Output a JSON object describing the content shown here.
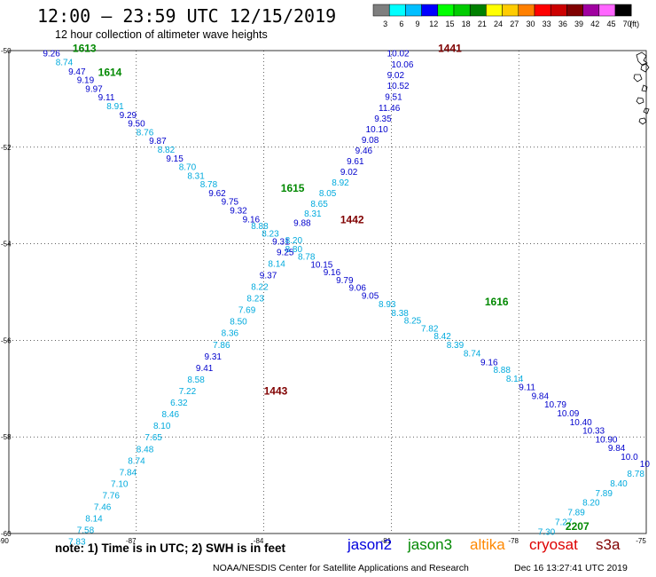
{
  "header": {
    "title": "12:00 – 23:59 UTC 12/15/2019",
    "subtitle": "12 hour collection of altimeter wave heights"
  },
  "colorbar": {
    "unit": "(ft)",
    "bins": [
      {
        "label": "3",
        "color": "#7f7f7f"
      },
      {
        "label": "6",
        "color": "#00ffff"
      },
      {
        "label": "9",
        "color": "#00bfff"
      },
      {
        "label": "12",
        "color": "#0000ff"
      },
      {
        "label": "15",
        "color": "#00ff00"
      },
      {
        "label": "18",
        "color": "#00cc00"
      },
      {
        "label": "21",
        "color": "#008000"
      },
      {
        "label": "24",
        "color": "#ffff00"
      },
      {
        "label": "27",
        "color": "#ffcc00"
      },
      {
        "label": "30",
        "color": "#ff8000"
      },
      {
        "label": "33",
        "color": "#ff0000"
      },
      {
        "label": "36",
        "color": "#cc0000"
      },
      {
        "label": "39",
        "color": "#800000"
      },
      {
        "label": "42",
        "color": "#a000a0"
      },
      {
        "label": "45",
        "color": "#ff66ff"
      },
      {
        "label": "70",
        "color": "#000000"
      }
    ]
  },
  "map": {
    "lon_ticks": [
      "-90",
      "-87",
      "-84",
      "-81",
      "-78",
      "-75"
    ],
    "lat_ticks": [
      "-50",
      "-52",
      "-54",
      "-56",
      "-58",
      "-60"
    ],
    "lon_range": [
      -90,
      -75
    ],
    "lat_range": [
      -60,
      -50
    ]
  },
  "chart_data": {
    "type": "scatter",
    "passes": [
      {
        "id": "pass-a",
        "color": "#00aadd",
        "labels": [
          {
            "t": "9.26",
            "lon": -89.2,
            "lat": -50.05,
            "color": "#0000cc"
          },
          {
            "t": "8.74",
            "lon": -88.9,
            "lat": -50.23,
            "color": "#00aadd"
          },
          {
            "t": "9.47",
            "lon": -88.6,
            "lat": -50.42,
            "color": "#0000cc"
          },
          {
            "t": "9.19",
            "lon": -88.4,
            "lat": -50.6,
            "color": "#0000cc"
          },
          {
            "t": "9.97",
            "lon": -88.2,
            "lat": -50.78,
            "color": "#0000cc"
          },
          {
            "t": "9.11",
            "lon": -87.9,
            "lat": -50.96,
            "color": "#0000cc"
          },
          {
            "t": "8.91",
            "lon": -87.7,
            "lat": -51.14,
            "color": "#00aadd"
          },
          {
            "t": "9.29",
            "lon": -87.4,
            "lat": -51.32,
            "color": "#0000cc"
          },
          {
            "t": "9.50",
            "lon": -87.2,
            "lat": -51.5,
            "color": "#0000cc"
          },
          {
            "t": "8.76",
            "lon": -87.0,
            "lat": -51.68,
            "color": "#00aadd"
          },
          {
            "t": "9.87",
            "lon": -86.7,
            "lat": -51.86,
            "color": "#0000cc"
          },
          {
            "t": "8.82",
            "lon": -86.5,
            "lat": -52.04,
            "color": "#00aadd"
          },
          {
            "t": "9.15",
            "lon": -86.3,
            "lat": -52.22,
            "color": "#0000cc"
          },
          {
            "t": "8.70",
            "lon": -86.0,
            "lat": -52.4,
            "color": "#00aadd"
          },
          {
            "t": "8.31",
            "lon": -85.8,
            "lat": -52.58,
            "color": "#00aadd"
          },
          {
            "t": "8.78",
            "lon": -85.5,
            "lat": -52.76,
            "color": "#00aadd"
          },
          {
            "t": "9.62",
            "lon": -85.3,
            "lat": -52.94,
            "color": "#0000cc"
          },
          {
            "t": "9.75",
            "lon": -85.0,
            "lat": -53.12,
            "color": "#0000cc"
          },
          {
            "t": "9.32",
            "lon": -84.8,
            "lat": -53.3,
            "color": "#0000cc"
          },
          {
            "t": "9.16",
            "lon": -84.5,
            "lat": -53.48,
            "color": "#0000cc"
          },
          {
            "t": "8.88",
            "lon": -84.3,
            "lat": -53.62,
            "color": "#00aadd"
          },
          {
            "t": "8.23",
            "lon": -84.05,
            "lat": -53.78,
            "color": "#00aadd"
          },
          {
            "t": "9.31",
            "lon": -83.8,
            "lat": -53.94,
            "color": "#0000cc"
          },
          {
            "t": "8.80",
            "lon": -83.5,
            "lat": -54.1,
            "color": "#00aadd"
          },
          {
            "t": "8.78",
            "lon": -83.2,
            "lat": -54.26,
            "color": "#00aadd"
          },
          {
            "t": "10.15",
            "lon": -82.9,
            "lat": -54.42,
            "color": "#0000cc"
          },
          {
            "t": "9.16",
            "lon": -82.6,
            "lat": -54.58,
            "color": "#0000cc"
          },
          {
            "t": "9.79",
            "lon": -82.3,
            "lat": -54.74,
            "color": "#0000cc"
          },
          {
            "t": "9.06",
            "lon": -82.0,
            "lat": -54.9,
            "color": "#0000cc"
          },
          {
            "t": "9.05",
            "lon": -81.7,
            "lat": -55.06,
            "color": "#0000cc"
          },
          {
            "t": "8.93",
            "lon": -81.3,
            "lat": -55.24,
            "color": "#00aadd"
          },
          {
            "t": "8.38",
            "lon": -81.0,
            "lat": -55.42,
            "color": "#00aadd"
          },
          {
            "t": "8.25",
            "lon": -80.7,
            "lat": -55.58,
            "color": "#00aadd"
          },
          {
            "t": "7.82",
            "lon": -80.3,
            "lat": -55.74,
            "color": "#00aadd"
          },
          {
            "t": "8.42",
            "lon": -80.0,
            "lat": -55.9,
            "color": "#00aadd"
          },
          {
            "t": "8.39",
            "lon": -79.7,
            "lat": -56.08,
            "color": "#00aadd"
          },
          {
            "t": "8.74",
            "lon": -79.3,
            "lat": -56.26,
            "color": "#00aadd"
          },
          {
            "t": "9.16",
            "lon": -78.9,
            "lat": -56.44,
            "color": "#0000cc"
          },
          {
            "t": "8.88",
            "lon": -78.6,
            "lat": -56.6,
            "color": "#00aadd"
          },
          {
            "t": "8.14",
            "lon": -78.3,
            "lat": -56.78,
            "color": "#00aadd"
          },
          {
            "t": "9.11",
            "lon": -78.0,
            "lat": -56.96,
            "color": "#0000cc"
          },
          {
            "t": "9.84",
            "lon": -77.7,
            "lat": -57.14,
            "color": "#0000cc"
          },
          {
            "t": "10.79",
            "lon": -77.4,
            "lat": -57.32,
            "color": "#0000cc"
          },
          {
            "t": "10.09",
            "lon": -77.1,
            "lat": -57.5,
            "color": "#0000cc"
          },
          {
            "t": "10.40",
            "lon": -76.8,
            "lat": -57.68,
            "color": "#0000cc"
          },
          {
            "t": "10.33",
            "lon": -76.5,
            "lat": -57.86,
            "color": "#0000cc"
          },
          {
            "t": "10.90",
            "lon": -76.2,
            "lat": -58.04,
            "color": "#0000cc"
          },
          {
            "t": "9.84",
            "lon": -75.9,
            "lat": -58.22,
            "color": "#0000cc"
          },
          {
            "t": "10.0",
            "lon": -75.6,
            "lat": -58.4,
            "color": "#0000cc"
          }
        ]
      },
      {
        "id": "pass-b",
        "color": "#0000cc",
        "labels": [
          {
            "t": "10.02",
            "lon": -81.1,
            "lat": -50.05,
            "color": "#0000cc"
          },
          {
            "t": "10.06",
            "lon": -81.0,
            "lat": -50.28,
            "color": "#0000cc"
          },
          {
            "t": "9.02",
            "lon": -81.1,
            "lat": -50.5,
            "color": "#0000cc"
          },
          {
            "t": "10.52",
            "lon": -81.1,
            "lat": -50.72,
            "color": "#0000cc"
          },
          {
            "t": "9.51",
            "lon": -81.15,
            "lat": -50.95,
            "color": "#0000cc"
          },
          {
            "t": "11.46",
            "lon": -81.3,
            "lat": -51.18,
            "color": "#0000cc"
          },
          {
            "t": "9.35",
            "lon": -81.4,
            "lat": -51.4,
            "color": "#0000cc"
          },
          {
            "t": "10.10",
            "lon": -81.6,
            "lat": -51.62,
            "color": "#0000cc"
          },
          {
            "t": "9.08",
            "lon": -81.7,
            "lat": -51.84,
            "color": "#0000cc"
          },
          {
            "t": "9.46",
            "lon": -81.85,
            "lat": -52.06,
            "color": "#0000cc"
          },
          {
            "t": "9.61",
            "lon": -82.05,
            "lat": -52.28,
            "color": "#0000cc"
          },
          {
            "t": "9.02",
            "lon": -82.2,
            "lat": -52.5,
            "color": "#0000cc"
          },
          {
            "t": "8.92",
            "lon": -82.4,
            "lat": -52.72,
            "color": "#00aadd"
          },
          {
            "t": "8.05",
            "lon": -82.7,
            "lat": -52.94,
            "color": "#00aadd"
          },
          {
            "t": "8.65",
            "lon": -82.9,
            "lat": -53.16,
            "color": "#00aadd"
          },
          {
            "t": "8.31",
            "lon": -83.05,
            "lat": -53.36,
            "color": "#00aadd"
          },
          {
            "t": "9.88",
            "lon": -83.3,
            "lat": -53.56,
            "color": "#0000cc"
          },
          {
            "t": "8.20",
            "lon": -83.5,
            "lat": -53.92,
            "color": "#00aadd"
          },
          {
            "t": "9.25",
            "lon": -83.7,
            "lat": -54.16,
            "color": "#0000cc"
          },
          {
            "t": "8.14",
            "lon": -83.9,
            "lat": -54.4,
            "color": "#00aadd"
          },
          {
            "t": "9.37",
            "lon": -84.1,
            "lat": -54.64,
            "color": "#0000cc"
          },
          {
            "t": "8.22",
            "lon": -84.3,
            "lat": -54.88,
            "color": "#00aadd"
          },
          {
            "t": "8.23",
            "lon": -84.4,
            "lat": -55.12,
            "color": "#00aadd"
          },
          {
            "t": "7.69",
            "lon": -84.6,
            "lat": -55.36,
            "color": "#00aadd"
          },
          {
            "t": "8.50",
            "lon": -84.8,
            "lat": -55.6,
            "color": "#00aadd"
          },
          {
            "t": "8.36",
            "lon": -85.0,
            "lat": -55.84,
            "color": "#00aadd"
          },
          {
            "t": "7.86",
            "lon": -85.2,
            "lat": -56.08,
            "color": "#00aadd"
          },
          {
            "t": "9.31",
            "lon": -85.4,
            "lat": -56.32,
            "color": "#0000cc"
          },
          {
            "t": "9.41",
            "lon": -85.6,
            "lat": -56.56,
            "color": "#0000cc"
          },
          {
            "t": "8.58",
            "lon": -85.8,
            "lat": -56.8,
            "color": "#00aadd"
          },
          {
            "t": "7.22",
            "lon": -86.0,
            "lat": -57.04,
            "color": "#00aadd"
          },
          {
            "t": "6.32",
            "lon": -86.2,
            "lat": -57.28,
            "color": "#00aadd"
          },
          {
            "t": "8.46",
            "lon": -86.4,
            "lat": -57.52,
            "color": "#00aadd"
          },
          {
            "t": "8.10",
            "lon": -86.6,
            "lat": -57.76,
            "color": "#00aadd"
          },
          {
            "t": "7.65",
            "lon": -86.8,
            "lat": -58.0,
            "color": "#00aadd"
          },
          {
            "t": "8.48",
            "lon": -87.0,
            "lat": -58.24,
            "color": "#00aadd"
          },
          {
            "t": "8.74",
            "lon": -87.2,
            "lat": -58.48,
            "color": "#00aadd"
          },
          {
            "t": "7.84",
            "lon": -87.4,
            "lat": -58.72,
            "color": "#00aadd"
          },
          {
            "t": "7.10",
            "lon": -87.6,
            "lat": -58.96,
            "color": "#00aadd"
          },
          {
            "t": "7.76",
            "lon": -87.8,
            "lat": -59.2,
            "color": "#00aadd"
          },
          {
            "t": "7.46",
            "lon": -88.0,
            "lat": -59.44,
            "color": "#00aadd"
          },
          {
            "t": "8.14",
            "lon": -88.2,
            "lat": -59.68,
            "color": "#00aadd"
          },
          {
            "t": "7.58",
            "lon": -88.4,
            "lat": -59.92,
            "color": "#00aadd"
          },
          {
            "t": "7.83",
            "lon": -88.6,
            "lat": -60.16,
            "color": "#00aadd"
          }
        ]
      },
      {
        "id": "pass-c",
        "color": "#00aadd",
        "labels": [
          {
            "t": "7.30",
            "lon": -77.55,
            "lat": -59.95,
            "color": "#00aadd"
          },
          {
            "t": "7.27",
            "lon": -77.15,
            "lat": -59.75,
            "color": "#00aadd"
          },
          {
            "t": "7.89",
            "lon": -76.85,
            "lat": -59.55,
            "color": "#00aadd"
          },
          {
            "t": "8.20",
            "lon": -76.5,
            "lat": -59.35,
            "color": "#00aadd"
          },
          {
            "t": "7.89",
            "lon": -76.2,
            "lat": -59.15,
            "color": "#00aadd"
          },
          {
            "t": "8.40",
            "lon": -75.85,
            "lat": -58.95,
            "color": "#00aadd"
          },
          {
            "t": "8.78",
            "lon": -75.45,
            "lat": -58.75,
            "color": "#00aadd"
          },
          {
            "t": "10",
            "lon": -75.15,
            "lat": -58.55,
            "color": "#0000cc"
          }
        ]
      }
    ],
    "time_labels": [
      {
        "t": "1613",
        "lon": -88.5,
        "lat": -49.95,
        "color": "#008800"
      },
      {
        "t": "1614",
        "lon": -87.9,
        "lat": -50.45,
        "color": "#008800"
      },
      {
        "t": "1441",
        "lon": -79.9,
        "lat": -49.95,
        "color": "#800000"
      },
      {
        "t": "1615",
        "lon": -83.6,
        "lat": -52.85,
        "color": "#008800"
      },
      {
        "t": "1442",
        "lon": -82.2,
        "lat": -53.5,
        "color": "#800000"
      },
      {
        "t": "1616",
        "lon": -78.8,
        "lat": -55.2,
        "color": "#008800"
      },
      {
        "t": "1443",
        "lon": -84.0,
        "lat": -57.05,
        "color": "#800000"
      },
      {
        "t": "2207",
        "lon": -76.9,
        "lat": -59.85,
        "color": "#008800"
      }
    ]
  },
  "footer": {
    "note": "note:  1) Time is in UTC;  2) SWH is in feet",
    "satellites": [
      {
        "name": "jason2",
        "color": "#0000dd"
      },
      {
        "name": "jason3",
        "color": "#008800"
      },
      {
        "name": "altika",
        "color": "#ff8800"
      },
      {
        "name": "cryosat",
        "color": "#dd0000"
      },
      {
        "name": "s3a",
        "color": "#800000"
      }
    ],
    "credit": "NOAA/NESDIS Center for Satellite Applications and Research",
    "timestamp": "Dec 16 13:27:41 UTC 2019"
  }
}
